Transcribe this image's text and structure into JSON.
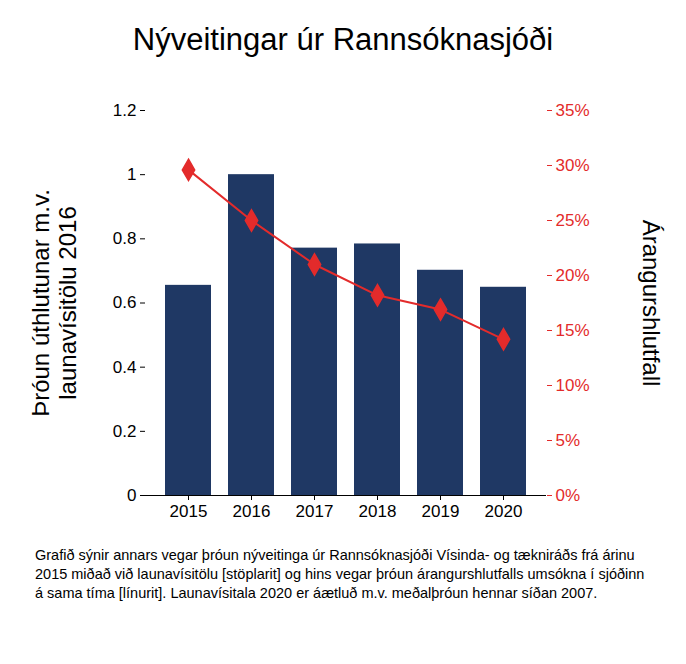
{
  "chart_data": {
    "type": "bar",
    "title": "Nýveitingar úr Rannsóknasjóði",
    "y_label": [
      "Þróun úthlutunar m.v.",
      "launavísitölu 2016"
    ],
    "y2_label": "Árangurshlutfall",
    "caption": "Grafið sýnir annars vegar þróun nýveitinga úr Rannsóknasjóði Vísinda- og tækniráðs frá árinu 2015 miðað við launavísitölu [stöplarit] og hins vegar þróun árangurshlutfalls umsókna í sjóðinn á sama tíma [línurit]. Launavísitala 2020 er áætluð m.v. meðalþróun hennar síðan 2007.",
    "categories": [
      "2015",
      "2016",
      "2017",
      "2018",
      "2019",
      "2020"
    ],
    "series": [
      {
        "type": "bar",
        "color": "#1f3864",
        "values": [
          0.655,
          1.0,
          0.771,
          0.784,
          0.702,
          0.649
        ]
      },
      {
        "type": "line",
        "axis": "y2",
        "color": "#e32b2b",
        "marker": "diamond",
        "values": [
          29.6,
          25.0,
          21.0,
          18.2,
          16.9,
          14.2
        ]
      }
    ],
    "ylim": [
      0,
      1.2
    ],
    "yticks": [
      0,
      0.2,
      0.4,
      0.6,
      0.8,
      1,
      1.2
    ],
    "y2lim": [
      0,
      35
    ],
    "y2ticks": [
      {
        "value": 0,
        "label": "0%"
      },
      {
        "value": 5,
        "label": "5%"
      },
      {
        "value": 10,
        "label": "10%"
      },
      {
        "value": 15,
        "label": "15%"
      },
      {
        "value": 20,
        "label": "20%"
      },
      {
        "value": 25,
        "label": "25%"
      },
      {
        "value": 30,
        "label": "30%"
      },
      {
        "value": 35,
        "label": "35%"
      }
    ],
    "grid": false
  }
}
